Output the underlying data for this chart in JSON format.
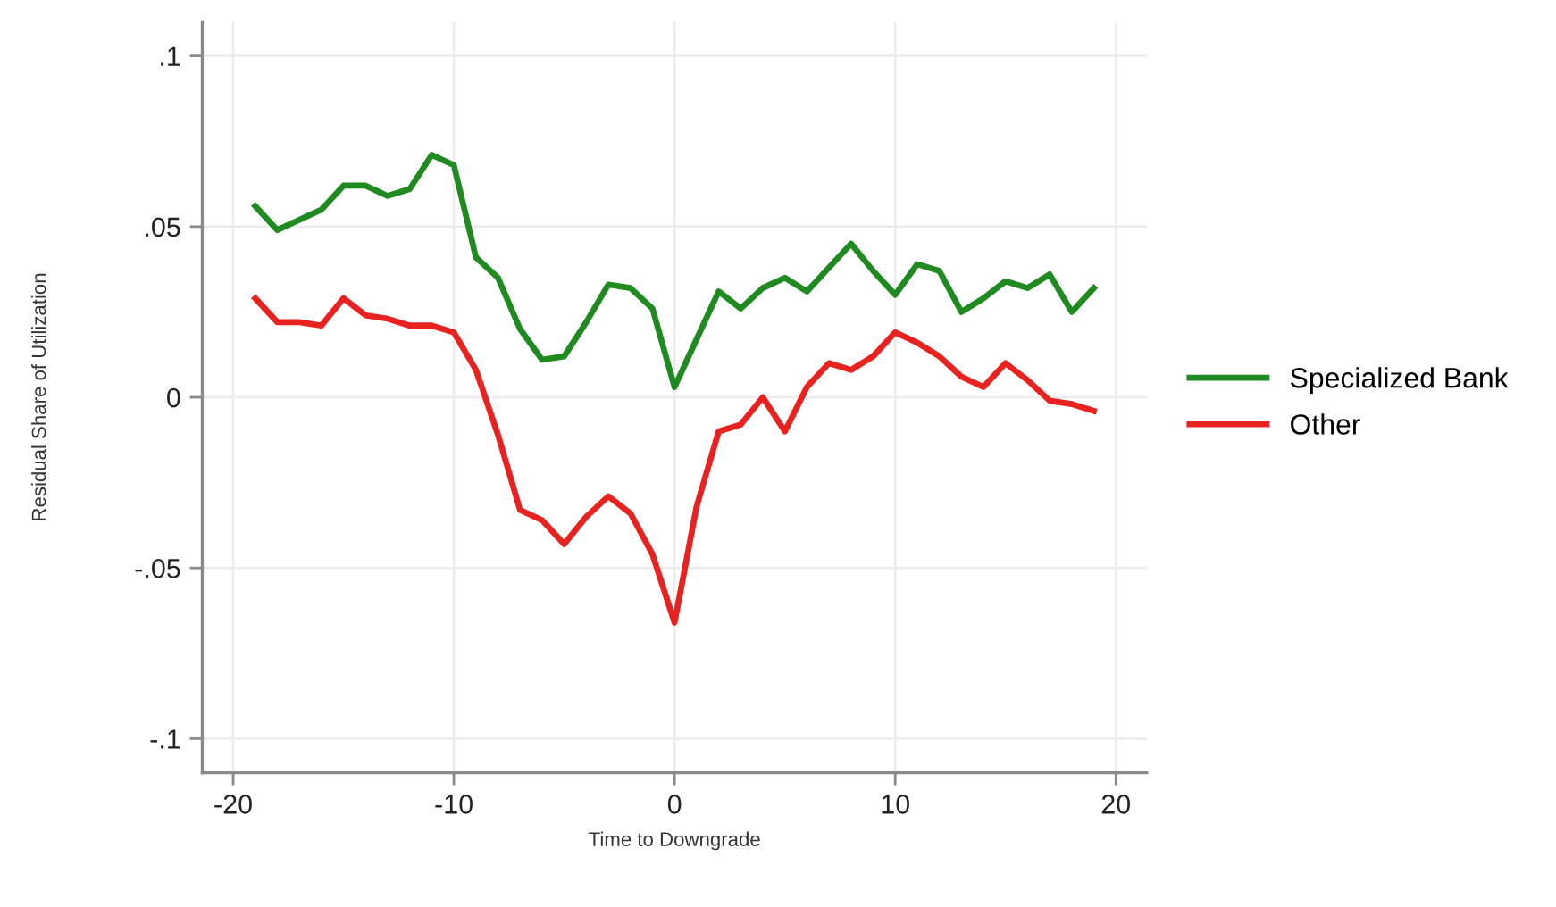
{
  "chart_data": {
    "type": "line",
    "xlabel": "Time to Downgrade",
    "ylabel": "Residual Share of Utilization",
    "x": [
      -19,
      -18,
      -17,
      -16,
      -15,
      -14,
      -13,
      -12,
      -11,
      -10,
      -9,
      -8,
      -7,
      -6,
      -5,
      -4,
      -3,
      -2,
      -1,
      0,
      1,
      2,
      3,
      4,
      5,
      6,
      7,
      8,
      9,
      10,
      11,
      12,
      13,
      14,
      15,
      16,
      17,
      18,
      19
    ],
    "series": [
      {
        "name": "Specialized Bank",
        "color": "#1f8a1f",
        "values": [
          0.056,
          0.049,
          0.052,
          0.055,
          0.062,
          0.062,
          0.059,
          0.061,
          0.071,
          0.068,
          0.041,
          0.035,
          0.02,
          0.011,
          0.012,
          0.022,
          0.033,
          0.032,
          0.026,
          0.003,
          0.017,
          0.031,
          0.026,
          0.032,
          0.035,
          0.031,
          0.038,
          0.045,
          0.037,
          0.03,
          0.039,
          0.037,
          0.025,
          0.029,
          0.034,
          0.032,
          0.036,
          0.025,
          0.032
        ]
      },
      {
        "name": "Other",
        "color": "#e8221e",
        "values": [
          0.029,
          0.022,
          0.022,
          0.021,
          0.029,
          0.024,
          0.023,
          0.021,
          0.021,
          0.019,
          0.008,
          -0.011,
          -0.033,
          -0.036,
          -0.043,
          -0.035,
          -0.029,
          -0.034,
          -0.046,
          -0.066,
          -0.032,
          -0.01,
          -0.008,
          0.0,
          -0.01,
          0.003,
          0.01,
          0.008,
          0.012,
          0.019,
          0.016,
          0.012,
          0.006,
          0.003,
          0.01,
          0.005,
          -0.001,
          -0.002,
          -0.004
        ]
      }
    ],
    "xlim": [
      -21.4,
      21.4
    ],
    "ylim": [
      -0.11,
      0.11
    ],
    "xticks": [
      -20,
      -10,
      0,
      10,
      20
    ],
    "yticks": [
      {
        "value": 0.1,
        "label": ".1"
      },
      {
        "value": 0.05,
        "label": ".05"
      },
      0,
      {
        "value": -0.05,
        "label": "-.05"
      },
      {
        "value": -0.1,
        "label": "-.1"
      }
    ],
    "grid": true,
    "legend": "right",
    "line_style": "solid"
  }
}
